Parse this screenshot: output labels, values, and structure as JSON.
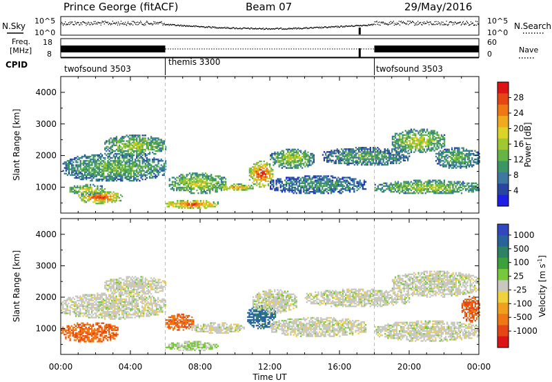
{
  "header": {
    "radar": "Prince George (fitACF)",
    "beam": "Beam 07",
    "date": "29/May/2016"
  },
  "side_labels": {
    "nsky": "N.Sky",
    "freq_line1": "Freq.",
    "freq_line2": "[MHz]",
    "cpid": "CPID",
    "nsearch": "N.Search",
    "nave": "Nave"
  },
  "noise_panel": {
    "left_ticks": [
      "10^5",
      "10^0"
    ],
    "right_ticks": [
      "10^5",
      "10^0"
    ]
  },
  "freq_panel": {
    "left_ticks": [
      "18",
      "8"
    ],
    "right_ticks": [
      "60",
      "0"
    ]
  },
  "cpid_panel": {
    "segments": [
      {
        "label": "twofsound 3503",
        "start_hour": 0,
        "end_hour": 6
      },
      {
        "label": "themis 3300",
        "start_hour": 6,
        "end_hour": 18
      },
      {
        "label": "twofsound 3503",
        "start_hour": 18,
        "end_hour": 24
      }
    ]
  },
  "x_axis": {
    "label": "Time UT",
    "ticks": [
      "00:00",
      "04:00",
      "08:00",
      "12:00",
      "16:00",
      "20:00",
      "00:00"
    ],
    "range_hours": [
      0,
      24
    ]
  },
  "chart_data": [
    {
      "type": "heatmap",
      "ylabel": "Slant Range [km]",
      "ylim": [
        180,
        4500
      ],
      "yticks": [
        "1000",
        "2000",
        "3000",
        "4000"
      ],
      "xlim_hours": [
        0,
        24
      ],
      "colorbar": {
        "label": "Power [dB]",
        "ticks": [
          "4",
          "8",
          "12",
          "16",
          "20",
          "24",
          "28"
        ],
        "range": [
          0,
          32
        ]
      },
      "colors": [
        "#1e1ee6",
        "#2846a0",
        "#3c78a0",
        "#3c9664",
        "#64b446",
        "#a0c832",
        "#dcd228",
        "#f0aa1e",
        "#f07814",
        "#e64614",
        "#dc1414"
      ],
      "blobs": [
        {
          "x0": 0.1,
          "x1": 6.0,
          "r0": 1050,
          "r1": 2150,
          "level": 0.45
        },
        {
          "x0": 1.0,
          "x1": 3.5,
          "r0": 420,
          "r1": 900,
          "level": 0.9
        },
        {
          "x0": 0.5,
          "x1": 2.5,
          "r0": 700,
          "r1": 1100,
          "level": 0.65
        },
        {
          "x0": 2.5,
          "x1": 6.0,
          "r0": 1900,
          "r1": 2700,
          "level": 0.55
        },
        {
          "x0": 6.0,
          "x1": 9.0,
          "r0": 280,
          "r1": 600,
          "level": 0.92
        },
        {
          "x0": 6.2,
          "x1": 9.5,
          "r0": 700,
          "r1": 1500,
          "level": 0.6
        },
        {
          "x0": 9.0,
          "x1": 11.0,
          "r0": 850,
          "r1": 1100,
          "level": 0.78
        },
        {
          "x0": 10.8,
          "x1": 12.2,
          "r0": 900,
          "r1": 1900,
          "level": 0.95
        },
        {
          "x0": 12.0,
          "x1": 14.5,
          "r0": 1500,
          "r1": 2250,
          "level": 0.55
        },
        {
          "x0": 12.0,
          "x1": 17.5,
          "r0": 700,
          "r1": 1400,
          "level": 0.35
        },
        {
          "x0": 15.0,
          "x1": 20.0,
          "r0": 1600,
          "r1": 2300,
          "level": 0.4
        },
        {
          "x0": 18.0,
          "x1": 24.0,
          "r0": 700,
          "r1": 1250,
          "level": 0.55
        },
        {
          "x0": 19.0,
          "x1": 22.0,
          "r0": 2000,
          "r1": 2900,
          "level": 0.6
        },
        {
          "x0": 21.5,
          "x1": 24.0,
          "r0": 1500,
          "r1": 2300,
          "level": 0.45
        }
      ]
    },
    {
      "type": "heatmap",
      "ylabel": "Slant Range [km]",
      "ylim": [
        180,
        4500
      ],
      "yticks": [
        "1000",
        "2000",
        "3000",
        "4000"
      ],
      "xlim_hours": [
        0,
        24
      ],
      "colorbar": {
        "label": "Velocity [m s^-1]",
        "ticks": [
          "1000",
          "500",
          "100",
          "25",
          "-25",
          "-100",
          "-500",
          "-1000"
        ],
        "range": [
          -1200,
          1200
        ]
      },
      "colors": [
        "#3246be",
        "#28649b",
        "#2d8264",
        "#3ca03c",
        "#78c83c",
        "#c8c8c0",
        "#f0d23c",
        "#f0a01e",
        "#f07814",
        "#e64614",
        "#dc1414"
      ],
      "blobs": [
        {
          "x0": 0.0,
          "x1": 6.0,
          "r0": 1200,
          "r1": 2200,
          "level": 0.5
        },
        {
          "x0": 0.0,
          "x1": 3.3,
          "r0": 480,
          "r1": 1250,
          "level": 0.8
        },
        {
          "x0": 2.5,
          "x1": 6.0,
          "r0": 2000,
          "r1": 2700,
          "level": 0.5
        },
        {
          "x0": 6.0,
          "x1": 9.0,
          "r0": 250,
          "r1": 600,
          "level": 0.45
        },
        {
          "x0": 6.0,
          "x1": 7.6,
          "r0": 850,
          "r1": 1500,
          "level": 0.8
        },
        {
          "x0": 7.5,
          "x1": 10.5,
          "r0": 800,
          "r1": 1200,
          "level": 0.5
        },
        {
          "x0": 10.7,
          "x1": 12.3,
          "r0": 900,
          "r1": 1800,
          "level": 0.15
        },
        {
          "x0": 11.0,
          "x1": 13.5,
          "r0": 1400,
          "r1": 2300,
          "level": 0.5
        },
        {
          "x0": 12.0,
          "x1": 17.5,
          "r0": 650,
          "r1": 1400,
          "level": 0.5
        },
        {
          "x0": 14.0,
          "x1": 20.0,
          "r0": 1600,
          "r1": 2300,
          "level": 0.5
        },
        {
          "x0": 18.0,
          "x1": 24.0,
          "r0": 500,
          "r1": 1300,
          "level": 0.5
        },
        {
          "x0": 19.0,
          "x1": 24.0,
          "r0": 1900,
          "r1": 2900,
          "level": 0.5
        },
        {
          "x0": 23.0,
          "x1": 24.0,
          "r0": 1100,
          "r1": 2100,
          "level": 0.82
        }
      ]
    }
  ]
}
